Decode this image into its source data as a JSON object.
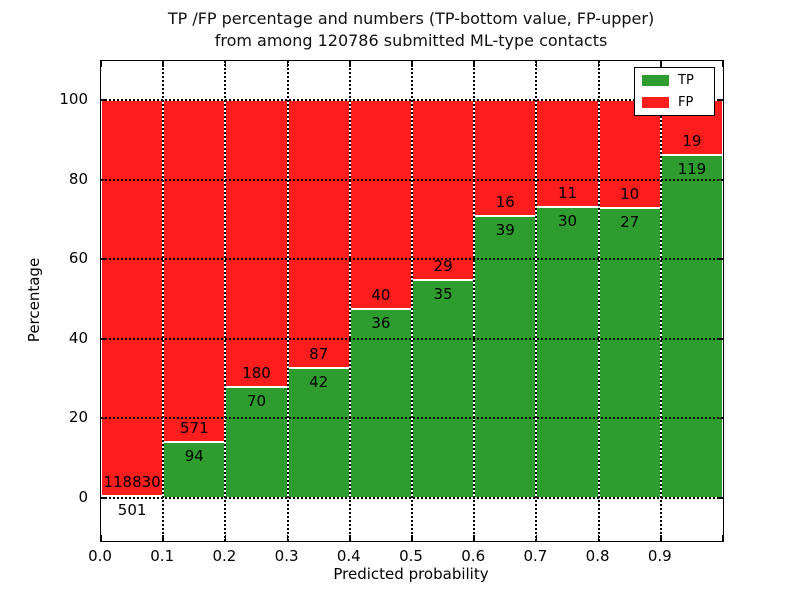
{
  "title": {
    "line1": "TP /FP percentage and numbers (TP-bottom value, FP-upper)",
    "line2": "from among 120786 submitted ML-type contacts"
  },
  "chart_data": {
    "type": "bar",
    "stacked": true,
    "normalized_to_percent": true,
    "title": "TP /FP percentage and numbers (TP-bottom value, FP-upper) from among 120786 submitted ML-type contacts",
    "xlabel": "Predicted probability",
    "ylabel": "Percentage",
    "bins": [
      "0.0-0.1",
      "0.1-0.2",
      "0.2-0.3",
      "0.3-0.4",
      "0.4-0.5",
      "0.5-0.6",
      "0.6-0.7",
      "0.7-0.8",
      "0.8-0.9",
      "0.9-1.0"
    ],
    "series": [
      {
        "name": "TP",
        "position": "bottom",
        "color": "#2E9C2E",
        "values": [
          501,
          94,
          70,
          42,
          36,
          35,
          39,
          30,
          27,
          119
        ]
      },
      {
        "name": "FP",
        "position": "top",
        "color": "#FD1D1D",
        "values": [
          118830,
          571,
          180,
          87,
          40,
          29,
          16,
          11,
          10,
          19
        ]
      }
    ],
    "xtick_labels": [
      "0.0",
      "0.1",
      "0.2",
      "0.3",
      "0.4",
      "0.5",
      "0.6",
      "0.7",
      "0.8",
      "0.9"
    ],
    "ytick_values": [
      0,
      20,
      40,
      60,
      80,
      100
    ],
    "xlim": [
      0.0,
      1.0
    ],
    "ylim": [
      -11,
      110
    ],
    "grid": "dotted-black-over-bars",
    "legend": {
      "position": "upper right",
      "entries": [
        "TP",
        "FP"
      ]
    }
  }
}
